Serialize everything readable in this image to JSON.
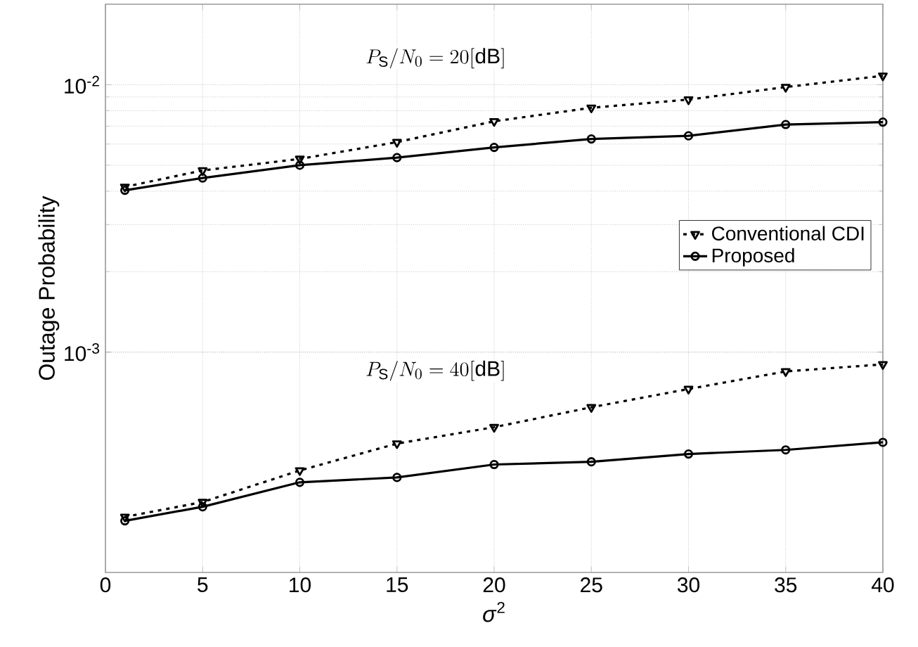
{
  "chart_data": {
    "type": "line",
    "xlabel": "*σ*$^{2}$",
    "ylabel": "Outage Probability",
    "x": [
      1,
      5,
      10,
      15,
      20,
      25,
      30,
      35,
      40
    ],
    "series": [
      {
        "name": "Conventional CDI",
        "color": "#000000",
        "line_style": "dotted",
        "marker": "triangle",
        "values": [
          0.00415,
          0.00478,
          0.00528,
          0.0061,
          0.0073,
          0.0082,
          0.0088,
          0.0098,
          0.0108
        ]
      },
      {
        "name": "Proposed",
        "color": "#000000",
        "line_style": "solid",
        "marker": "circle",
        "values": [
          0.00403,
          0.00448,
          0.005,
          0.00534,
          0.00583,
          0.00627,
          0.00644,
          0.0071,
          0.00725
        ]
      },
      {
        "color": "#000000",
        "line_style": "dotted",
        "marker": "triangle",
        "values": [
          0.000242,
          0.000275,
          0.000361,
          0.000455,
          0.000524,
          0.000622,
          0.000728,
          0.000847,
          0.0009
        ]
      },
      {
        "color": "#000000",
        "line_style": "solid",
        "marker": "circle",
        "values": [
          0.000234,
          0.000264,
          0.000326,
          0.00034,
          0.00038,
          0.000389,
          0.000416,
          0.000431,
          0.00046
        ]
      }
    ],
    "annotations": [
      "P_{\\mathrm{S}}/N_0 = 20[\\mathrm{dB}]",
      "P_{\\mathrm{S}}/N_0 = 40[\\mathrm{dB}]"
    ],
    "xlim": [
      0,
      40
    ],
    "xticks": [
      0,
      5,
      10,
      15,
      20,
      25,
      30,
      35,
      40
    ],
    "ylim": [
      0.00015,
      0.02
    ],
    "yticks": [
      {
        "value": 0.001,
        "label": "10$^{-3}$"
      },
      {
        "value": 0.01,
        "label": "10$^{-2}$"
      }
    ],
    "log": "y",
    "grid": true,
    "legend": "right"
  }
}
